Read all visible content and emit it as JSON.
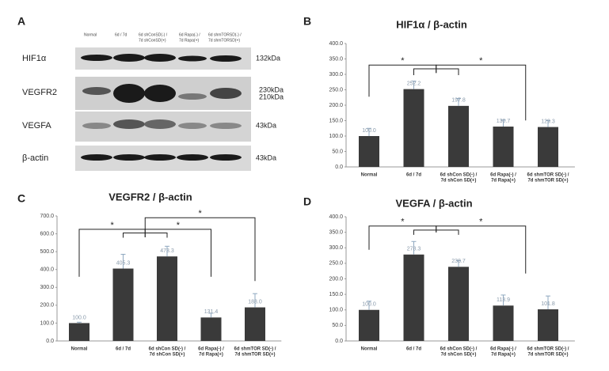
{
  "panel_a": {
    "letter": "A",
    "lanes": [
      [
        "Normal"
      ],
      [
        "6d / 7d"
      ],
      [
        "6d shConSD(-) /",
        "7d shConSD(+)"
      ],
      [
        "6d Rapa(-) /",
        "7d Rapa(+)"
      ],
      [
        "6d shmTORSD(-) /",
        "7d shmTORSD(+)"
      ]
    ],
    "rows": [
      {
        "protein": "HIF1α",
        "kda": [
          "132kDa"
        ]
      },
      {
        "protein": "VEGFR2",
        "kda": [
          "230kDa",
          "210kDa"
        ]
      },
      {
        "protein": "VEGFA",
        "kda": [
          "43kDa"
        ]
      },
      {
        "protein": "β-actin",
        "kda": [
          "43kDa"
        ]
      }
    ]
  },
  "chart_data": [
    {
      "type": "bar",
      "letter": "B",
      "title": "HIF1α / β-actin",
      "color": "#3a3a3a",
      "error_color": "#8fa8c0",
      "categories": [
        [
          "Normal"
        ],
        [
          "6d / 7d"
        ],
        [
          "6d shCon SD(-) /",
          "7d shCon SD(+)"
        ],
        [
          "6d Rapa(-) /",
          "7d Rapa(+)"
        ],
        [
          "6d shmTOR SD(-) /",
          "7d shmTOR SD(+)"
        ]
      ],
      "values": [
        100.0,
        252.2,
        197.8,
        130.7,
        129.3
      ],
      "value_labels": [
        "100.0",
        "252.2",
        "197.8",
        "130.7",
        "129.3"
      ],
      "errors": [
        25,
        26,
        24,
        21,
        21
      ],
      "annotations": [
        "*",
        "*"
      ],
      "ylim": [
        0,
        400
      ],
      "yticks": [
        {
          "value": 0,
          "label": "0.0"
        },
        {
          "value": 50,
          "label": "50.0"
        },
        {
          "value": 100,
          "label": "100.0"
        },
        {
          "value": 150,
          "label": "150.0"
        },
        {
          "value": 200,
          "label": "200.0"
        },
        {
          "value": 250,
          "label": "250.0"
        },
        {
          "value": 300,
          "label": "300.0"
        },
        {
          "value": 350,
          "label": "350.0"
        },
        {
          "value": 400,
          "label": "400.0"
        }
      ]
    },
    {
      "type": "bar",
      "letter": "C",
      "title": "VEGFR2 / β-actin",
      "color": "#3a3a3a",
      "error_color": "#8fa8c0",
      "categories": [
        [
          "Normal"
        ],
        [
          "6d / 7d"
        ],
        [
          "6d shCon SD(-) /",
          "7d shCon SD(+)"
        ],
        [
          "6d Rapa(-) /",
          "7d Rapa(+)"
        ],
        [
          "6d shmTOR SD(-) /",
          "7d shmTOR SD(+)"
        ]
      ],
      "values": [
        100.0,
        405.3,
        473.3,
        131.4,
        188.0
      ],
      "value_labels": [
        "100.0",
        "405.3",
        "473.3",
        "131.4",
        "188.0"
      ],
      "errors": [
        5,
        80,
        57,
        24,
        77
      ],
      "annotations": [
        "*",
        "*",
        "*"
      ],
      "ylim": [
        0,
        700
      ],
      "yticks": [
        {
          "value": 0,
          "label": "0.0"
        },
        {
          "value": 100,
          "label": "100.0"
        },
        {
          "value": 200,
          "label": "200.0"
        },
        {
          "value": 300,
          "label": "300.0"
        },
        {
          "value": 400,
          "label": "400.0"
        },
        {
          "value": 500,
          "label": "500.0"
        },
        {
          "value": 600,
          "label": "600.0"
        },
        {
          "value": 700,
          "label": "700.0"
        }
      ]
    },
    {
      "type": "bar",
      "letter": "D",
      "title": "VEGFA / β-actin",
      "color": "#3a3a3a",
      "error_color": "#8fa8c0",
      "categories": [
        [
          "Normal"
        ],
        [
          "6d / 7d"
        ],
        [
          "6d shCon SD(-) /",
          "7d shCon SD(+)"
        ],
        [
          "6d Rapa(-) /",
          "7d Rapa(+)"
        ],
        [
          "6d shmTOR SD(-) /",
          "7d shmTOR SD(+)"
        ]
      ],
      "values": [
        100.0,
        278.3,
        238.7,
        113.9,
        101.8
      ],
      "value_labels": [
        "100.0",
        "278.3",
        "238.7",
        "113.9",
        "101.8"
      ],
      "errors": [
        28,
        42,
        20,
        34,
        43
      ],
      "annotations": [
        "*",
        "*"
      ],
      "ylim": [
        0,
        400
      ],
      "yticks": [
        {
          "value": 0,
          "label": "0.0"
        },
        {
          "value": 50,
          "label": "50.0"
        },
        {
          "value": 100,
          "label": "100.0"
        },
        {
          "value": 150,
          "label": "150.0"
        },
        {
          "value": 200,
          "label": "200.0"
        },
        {
          "value": 250,
          "label": "250.0"
        },
        {
          "value": 300,
          "label": "300.0"
        },
        {
          "value": 350,
          "label": "350.0"
        },
        {
          "value": 400,
          "label": "400.0"
        }
      ]
    }
  ]
}
